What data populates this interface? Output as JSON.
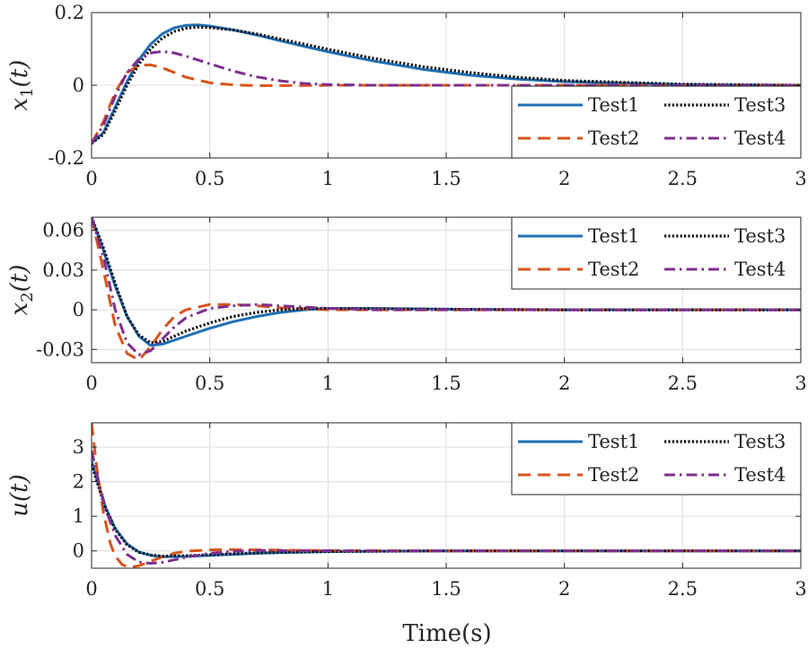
{
  "chart_data": [
    {
      "type": "line",
      "ylabel": "x_1(t)",
      "ylabel_main": "x",
      "ylabel_sub": "1",
      "ylabel_arg": "(t)",
      "xlim": [
        0,
        3
      ],
      "ylim": [
        -0.2,
        0.2
      ],
      "xticks": [
        0,
        0.5,
        1,
        1.5,
        2,
        2.5,
        3
      ],
      "xtick_labels": [
        "0",
        "0.5",
        "1",
        "1.5",
        "2",
        "2.5",
        "3"
      ],
      "yticks": [
        -0.2,
        0,
        0.2
      ],
      "ytick_labels": [
        "-0.2",
        "0",
        "0.2"
      ],
      "grid": true,
      "legend": "bottom-right",
      "series": [
        {
          "name": "Test1",
          "color": "#1f6fb4",
          "dash": "solid",
          "x": [
            0,
            0.05,
            0.1,
            0.15,
            0.2,
            0.25,
            0.3,
            0.35,
            0.4,
            0.45,
            0.5,
            0.6,
            0.7,
            0.8,
            0.9,
            1.0,
            1.2,
            1.4,
            1.6,
            1.8,
            2.0,
            2.5,
            3.0
          ],
          "y": [
            -0.16,
            -0.13,
            -0.06,
            0.01,
            0.07,
            0.113,
            0.142,
            0.158,
            0.165,
            0.166,
            0.163,
            0.152,
            0.138,
            0.122,
            0.107,
            0.092,
            0.066,
            0.044,
            0.028,
            0.017,
            0.01,
            0.002,
            0
          ]
        },
        {
          "name": "Test2",
          "color": "#d95319",
          "dash": "dashed",
          "x": [
            0,
            0.05,
            0.1,
            0.15,
            0.2,
            0.25,
            0.3,
            0.35,
            0.4,
            0.5,
            0.6,
            0.7,
            0.8,
            1.0,
            1.5,
            2.0,
            3.0
          ],
          "y": [
            -0.16,
            -0.1,
            -0.02,
            0.035,
            0.055,
            0.056,
            0.048,
            0.035,
            0.022,
            0.007,
            0.001,
            -0.001,
            -0.001,
            0,
            0,
            0,
            0
          ]
        },
        {
          "name": "Test3",
          "color": "#111111",
          "dash": "dotted",
          "x": [
            0,
            0.05,
            0.1,
            0.15,
            0.2,
            0.25,
            0.3,
            0.35,
            0.4,
            0.45,
            0.5,
            0.6,
            0.7,
            0.8,
            0.9,
            1.0,
            1.2,
            1.4,
            1.6,
            1.8,
            2.0,
            2.5,
            3.0
          ],
          "y": [
            -0.16,
            -0.135,
            -0.07,
            0.0,
            0.058,
            0.1,
            0.13,
            0.148,
            0.157,
            0.16,
            0.159,
            0.152,
            0.141,
            0.127,
            0.113,
            0.099,
            0.073,
            0.051,
            0.035,
            0.022,
            0.013,
            0.003,
            0
          ]
        },
        {
          "name": "Test4",
          "color": "#7e2f8e",
          "dash": "dashdot",
          "x": [
            0,
            0.05,
            0.1,
            0.15,
            0.2,
            0.25,
            0.3,
            0.35,
            0.4,
            0.5,
            0.6,
            0.7,
            0.8,
            0.9,
            1.0,
            1.2,
            1.5,
            2.0,
            3.0
          ],
          "y": [
            -0.16,
            -0.11,
            -0.03,
            0.035,
            0.072,
            0.089,
            0.093,
            0.089,
            0.08,
            0.059,
            0.039,
            0.023,
            0.012,
            0.005,
            0.002,
            0,
            0,
            0,
            0
          ]
        }
      ]
    },
    {
      "type": "line",
      "ylabel": "x_2(t)",
      "ylabel_main": "x",
      "ylabel_sub": "2",
      "ylabel_arg": "(t)",
      "xlim": [
        0,
        3
      ],
      "ylim": [
        -0.04,
        0.07
      ],
      "xticks": [
        0,
        0.5,
        1,
        1.5,
        2,
        2.5,
        3
      ],
      "xtick_labels": [
        "0",
        "0.5",
        "1",
        "1.5",
        "2",
        "2.5",
        "3"
      ],
      "yticks": [
        -0.03,
        0,
        0.03,
        0.06
      ],
      "ytick_labels": [
        "-0.03",
        "0",
        "0.03",
        "0.06"
      ],
      "grid": true,
      "legend": "top-right",
      "series": [
        {
          "name": "Test1",
          "color": "#1f6fb4",
          "dash": "solid",
          "x": [
            0,
            0.05,
            0.1,
            0.15,
            0.2,
            0.25,
            0.3,
            0.4,
            0.5,
            0.6,
            0.7,
            0.8,
            0.9,
            1.0,
            1.2,
            1.5,
            2.0,
            3.0
          ],
          "y": [
            0.07,
            0.045,
            0.018,
            -0.005,
            -0.02,
            -0.027,
            -0.026,
            -0.02,
            -0.014,
            -0.009,
            -0.005,
            -0.002,
            0.0,
            0.001,
            0.001,
            0.0005,
            0,
            0
          ]
        },
        {
          "name": "Test2",
          "color": "#d95319",
          "dash": "dashed",
          "x": [
            0,
            0.05,
            0.1,
            0.15,
            0.2,
            0.25,
            0.3,
            0.35,
            0.4,
            0.5,
            0.6,
            0.7,
            0.8,
            1.0,
            1.5,
            3.0
          ],
          "y": [
            0.07,
            0.03,
            -0.012,
            -0.033,
            -0.038,
            -0.028,
            -0.015,
            -0.005,
            0.0,
            0.004,
            0.004,
            0.003,
            0.0015,
            0.0,
            0,
            0
          ]
        },
        {
          "name": "Test3",
          "color": "#111111",
          "dash": "dotted",
          "x": [
            0,
            0.05,
            0.1,
            0.15,
            0.2,
            0.25,
            0.3,
            0.4,
            0.5,
            0.6,
            0.7,
            0.8,
            0.9,
            1.0,
            1.2,
            1.5,
            2.0,
            3.0
          ],
          "y": [
            0.07,
            0.047,
            0.02,
            -0.005,
            -0.019,
            -0.025,
            -0.024,
            -0.016,
            -0.01,
            -0.005,
            -0.002,
            0.0,
            0.001,
            0.001,
            0.0008,
            0.0003,
            0,
            0
          ]
        },
        {
          "name": "Test4",
          "color": "#7e2f8e",
          "dash": "dashdot",
          "x": [
            0,
            0.05,
            0.1,
            0.15,
            0.2,
            0.25,
            0.3,
            0.35,
            0.4,
            0.5,
            0.6,
            0.7,
            0.8,
            0.9,
            1.0,
            1.2,
            1.5,
            3.0
          ],
          "y": [
            0.07,
            0.04,
            0.0,
            -0.025,
            -0.034,
            -0.031,
            -0.022,
            -0.013,
            -0.006,
            0.001,
            0.003,
            0.004,
            0.003,
            0.002,
            0.001,
            0,
            0,
            0
          ]
        }
      ]
    },
    {
      "type": "line",
      "ylabel": "u(t)",
      "ylabel_main": "u",
      "ylabel_sub": "",
      "ylabel_arg": "(t)",
      "xlabel": "Time(s)",
      "xlim": [
        0,
        3
      ],
      "ylim": [
        -0.5,
        3.7
      ],
      "xticks": [
        0,
        0.5,
        1,
        1.5,
        2,
        2.5,
        3
      ],
      "xtick_labels": [
        "0",
        "0.5",
        "1",
        "1.5",
        "2",
        "2.5",
        "3"
      ],
      "yticks": [
        0,
        1,
        2,
        3
      ],
      "ytick_labels": [
        "0",
        "1",
        "2",
        "3"
      ],
      "grid": true,
      "legend": "top-right",
      "series": [
        {
          "name": "Test1",
          "color": "#1f6fb4",
          "dash": "solid",
          "x": [
            0,
            0.03,
            0.06,
            0.1,
            0.15,
            0.2,
            0.25,
            0.3,
            0.4,
            0.5,
            0.6,
            0.7,
            0.8,
            1.0,
            1.2,
            1.5,
            2.0,
            3.0
          ],
          "y": [
            2.6,
            1.9,
            1.25,
            0.65,
            0.2,
            -0.03,
            -0.13,
            -0.17,
            -0.16,
            -0.13,
            -0.1,
            -0.07,
            -0.05,
            -0.02,
            -0.01,
            0,
            0,
            0
          ]
        },
        {
          "name": "Test2",
          "color": "#d95319",
          "dash": "dashed",
          "x": [
            0,
            0.02,
            0.05,
            0.08,
            0.1,
            0.13,
            0.16,
            0.2,
            0.25,
            0.3,
            0.35,
            0.4,
            0.5,
            0.6,
            0.7,
            0.8,
            1.0,
            1.5,
            3.0
          ],
          "y": [
            3.7,
            2.5,
            1.1,
            0.2,
            -0.15,
            -0.4,
            -0.48,
            -0.43,
            -0.3,
            -0.17,
            -0.07,
            -0.01,
            0.03,
            0.04,
            0.03,
            0.02,
            0.01,
            0,
            0
          ]
        },
        {
          "name": "Test3",
          "color": "#111111",
          "dash": "dotted",
          "x": [
            0,
            0.03,
            0.06,
            0.1,
            0.15,
            0.2,
            0.25,
            0.3,
            0.4,
            0.5,
            0.6,
            0.7,
            0.8,
            1.0,
            1.2,
            1.5,
            2.0,
            3.0
          ],
          "y": [
            2.5,
            1.85,
            1.2,
            0.62,
            0.18,
            -0.04,
            -0.12,
            -0.15,
            -0.14,
            -0.11,
            -0.08,
            -0.06,
            -0.04,
            -0.02,
            -0.01,
            0,
            0,
            0
          ]
        },
        {
          "name": "Test4",
          "color": "#7e2f8e",
          "dash": "dashdot",
          "x": [
            0,
            0.03,
            0.06,
            0.1,
            0.15,
            0.2,
            0.25,
            0.3,
            0.35,
            0.4,
            0.5,
            0.6,
            0.7,
            0.8,
            1.0,
            1.2,
            1.5,
            3.0
          ],
          "y": [
            2.9,
            2.0,
            1.2,
            0.45,
            -0.1,
            -0.32,
            -0.36,
            -0.33,
            -0.26,
            -0.18,
            -0.07,
            -0.01,
            0.01,
            0.01,
            0.005,
            0,
            0,
            0
          ]
        }
      ]
    }
  ]
}
